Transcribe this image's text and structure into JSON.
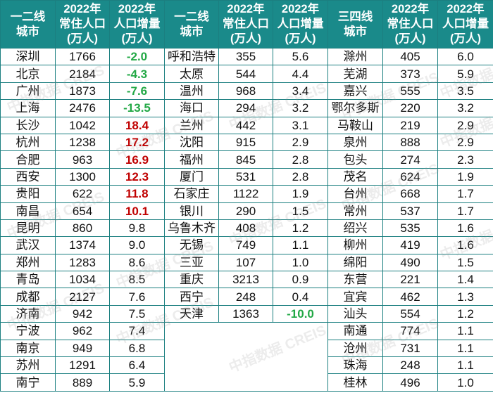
{
  "watermark": "中指数据 CREIS",
  "colors": {
    "header_bg": "#1a8a8a",
    "grid": "#1b7f80",
    "increase_highlight": "#c00000",
    "decrease": "#22a845"
  },
  "groups": [
    {
      "headers": [
        "一二线城市",
        "2022年常住人口(万人)",
        "2022年人口增量(万人)"
      ],
      "rows": [
        {
          "city": "深圳",
          "pop": "1766",
          "inc": "-2.0",
          "style": "down"
        },
        {
          "city": "北京",
          "pop": "2184",
          "inc": "-4.3",
          "style": "down"
        },
        {
          "city": "广州",
          "pop": "1873",
          "inc": "-7.6",
          "style": "down"
        },
        {
          "city": "上海",
          "pop": "2476",
          "inc": "-13.5",
          "style": "down"
        },
        {
          "city": "长沙",
          "pop": "1042",
          "inc": "18.4",
          "style": "up"
        },
        {
          "city": "杭州",
          "pop": "1238",
          "inc": "17.2",
          "style": "up"
        },
        {
          "city": "合肥",
          "pop": "963",
          "inc": "16.9",
          "style": "up"
        },
        {
          "city": "西安",
          "pop": "1300",
          "inc": "12.3",
          "style": "up"
        },
        {
          "city": "贵阳",
          "pop": "622",
          "inc": "11.8",
          "style": "up"
        },
        {
          "city": "南昌",
          "pop": "654",
          "inc": "10.1",
          "style": "up"
        },
        {
          "city": "昆明",
          "pop": "860",
          "inc": "9.8",
          "style": ""
        },
        {
          "city": "武汉",
          "pop": "1374",
          "inc": "9.0",
          "style": ""
        },
        {
          "city": "郑州",
          "pop": "1283",
          "inc": "8.6",
          "style": ""
        },
        {
          "city": "青岛",
          "pop": "1034",
          "inc": "8.5",
          "style": ""
        },
        {
          "city": "成都",
          "pop": "2127",
          "inc": "7.6",
          "style": ""
        },
        {
          "city": "济南",
          "pop": "942",
          "inc": "7.5",
          "style": ""
        },
        {
          "city": "宁波",
          "pop": "962",
          "inc": "7.4",
          "style": ""
        },
        {
          "city": "南京",
          "pop": "949",
          "inc": "6.8",
          "style": ""
        },
        {
          "city": "苏州",
          "pop": "1291",
          "inc": "6.4",
          "style": ""
        },
        {
          "city": "南宁",
          "pop": "889",
          "inc": "5.9",
          "style": ""
        }
      ]
    },
    {
      "headers": [
        "一二线城市",
        "2022年常住人口(万人)",
        "2022年人口增量(万人)"
      ],
      "rows": [
        {
          "city": "呼和浩特",
          "pop": "355",
          "inc": "5.6",
          "style": ""
        },
        {
          "city": "太原",
          "pop": "544",
          "inc": "4.4",
          "style": ""
        },
        {
          "city": "温州",
          "pop": "968",
          "inc": "3.4",
          "style": ""
        },
        {
          "city": "海口",
          "pop": "294",
          "inc": "3.2",
          "style": ""
        },
        {
          "city": "兰州",
          "pop": "442",
          "inc": "3.1",
          "style": ""
        },
        {
          "city": "沈阳",
          "pop": "915",
          "inc": "2.9",
          "style": ""
        },
        {
          "city": "福州",
          "pop": "845",
          "inc": "2.8",
          "style": ""
        },
        {
          "city": "厦门",
          "pop": "531",
          "inc": "2.8",
          "style": ""
        },
        {
          "city": "石家庄",
          "pop": "1122",
          "inc": "1.9",
          "style": ""
        },
        {
          "city": "银川",
          "pop": "290",
          "inc": "1.5",
          "style": ""
        },
        {
          "city": "乌鲁木齐",
          "pop": "408",
          "inc": "1.2",
          "style": ""
        },
        {
          "city": "无锡",
          "pop": "749",
          "inc": "1.1",
          "style": ""
        },
        {
          "city": "三亚",
          "pop": "107",
          "inc": "1.0",
          "style": ""
        },
        {
          "city": "重庆",
          "pop": "3213",
          "inc": "0.9",
          "style": ""
        },
        {
          "city": "西宁",
          "pop": "248",
          "inc": "0.4",
          "style": ""
        },
        {
          "city": "天津",
          "pop": "1363",
          "inc": "-10.0",
          "style": "down"
        }
      ]
    },
    {
      "headers": [
        "三四线城市",
        "2022年常住人口(万人)",
        "2022年人口增量(万人)"
      ],
      "rows": [
        {
          "city": "滁州",
          "pop": "405",
          "inc": "6.0",
          "style": ""
        },
        {
          "city": "芜湖",
          "pop": "373",
          "inc": "5.9",
          "style": ""
        },
        {
          "city": "嘉兴",
          "pop": "555",
          "inc": "3.5",
          "style": ""
        },
        {
          "city": "鄂尔多斯",
          "pop": "220",
          "inc": "3.2",
          "style": ""
        },
        {
          "city": "马鞍山",
          "pop": "219",
          "inc": "2.9",
          "style": ""
        },
        {
          "city": "泉州",
          "pop": "888",
          "inc": "2.9",
          "style": ""
        },
        {
          "city": "包头",
          "pop": "274",
          "inc": "2.3",
          "style": ""
        },
        {
          "city": "茂名",
          "pop": "624",
          "inc": "1.9",
          "style": ""
        },
        {
          "city": "台州",
          "pop": "668",
          "inc": "1.7",
          "style": ""
        },
        {
          "city": "常州",
          "pop": "537",
          "inc": "1.7",
          "style": ""
        },
        {
          "city": "绍兴",
          "pop": "535",
          "inc": "1.6",
          "style": ""
        },
        {
          "city": "柳州",
          "pop": "419",
          "inc": "1.6",
          "style": ""
        },
        {
          "city": "绵阳",
          "pop": "490",
          "inc": "1.5",
          "style": ""
        },
        {
          "city": "东营",
          "pop": "221",
          "inc": "1.4",
          "style": ""
        },
        {
          "city": "宜宾",
          "pop": "462",
          "inc": "1.3",
          "style": ""
        },
        {
          "city": "汕头",
          "pop": "554",
          "inc": "1.2",
          "style": ""
        },
        {
          "city": "南通",
          "pop": "774",
          "inc": "1.1",
          "style": ""
        },
        {
          "city": "沧州",
          "pop": "731",
          "inc": "1.1",
          "style": ""
        },
        {
          "city": "珠海",
          "pop": "248",
          "inc": "1.1",
          "style": ""
        },
        {
          "city": "桂林",
          "pop": "496",
          "inc": "1.0",
          "style": ""
        }
      ]
    }
  ]
}
